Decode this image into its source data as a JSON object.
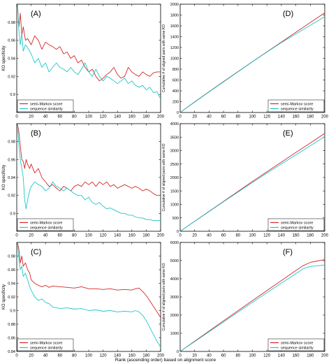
{
  "figure": {
    "xlabel": "Rank (ascending order) based on alignment score",
    "colors": {
      "semi_markov": "#d62728",
      "sequence": "#1ec7c9",
      "axis": "#000000",
      "grid": "#d8d8d8"
    }
  },
  "chart_data": [
    {
      "panel": "(A)",
      "type": "line",
      "ylabel": "KO specificity",
      "xlim": [
        0,
        200
      ],
      "ylim": [
        0.88,
        1.0
      ],
      "xticks": [
        0,
        20,
        40,
        60,
        80,
        100,
        120,
        140,
        160,
        180,
        200
      ],
      "yticks": [
        0.88,
        0.9,
        0.92,
        0.94,
        0.96,
        0.98,
        1.0
      ],
      "ytick_labels": [
        "",
        "0.9",
        "0.92",
        "0.94",
        "0.96",
        "0.98",
        ""
      ],
      "legend": "bottom-left",
      "series": [
        {
          "name": "semi-Markov score",
          "x": [
            1,
            3,
            5,
            7,
            9,
            12,
            15,
            20,
            25,
            30,
            35,
            40,
            45,
            50,
            55,
            60,
            65,
            70,
            75,
            80,
            85,
            90,
            95,
            100,
            105,
            110,
            115,
            120,
            125,
            130,
            135,
            140,
            145,
            150,
            155,
            160,
            165,
            170,
            175,
            180,
            185,
            190,
            195,
            200
          ],
          "y": [
            1.0,
            0.975,
            0.99,
            0.965,
            0.975,
            0.96,
            0.962,
            0.955,
            0.965,
            0.96,
            0.95,
            0.958,
            0.955,
            0.953,
            0.95,
            0.953,
            0.945,
            0.947,
            0.94,
            0.943,
            0.935,
            0.938,
            0.93,
            0.925,
            0.928,
            0.92,
            0.915,
            0.918,
            0.922,
            0.925,
            0.93,
            0.922,
            0.918,
            0.92,
            0.93,
            0.925,
            0.922,
            0.92,
            0.925,
            0.922,
            0.92,
            0.924,
            0.925,
            0.925
          ]
        },
        {
          "name": "sequence similarity",
          "x": [
            1,
            3,
            5,
            7,
            9,
            12,
            15,
            20,
            25,
            30,
            35,
            40,
            45,
            50,
            55,
            60,
            65,
            70,
            75,
            80,
            85,
            90,
            95,
            100,
            105,
            110,
            115,
            120,
            125,
            130,
            135,
            140,
            145,
            150,
            155,
            160,
            165,
            170,
            175,
            180,
            185,
            190,
            195,
            200
          ],
          "y": [
            1.0,
            0.97,
            0.955,
            0.968,
            0.948,
            0.955,
            0.952,
            0.945,
            0.935,
            0.94,
            0.93,
            0.935,
            0.925,
            0.93,
            0.935,
            0.93,
            0.928,
            0.925,
            0.93,
            0.925,
            0.922,
            0.928,
            0.935,
            0.925,
            0.92,
            0.928,
            0.92,
            0.915,
            0.92,
            0.918,
            0.915,
            0.912,
            0.915,
            0.918,
            0.912,
            0.915,
            0.91,
            0.908,
            0.91,
            0.905,
            0.908,
            0.902,
            0.903,
            0.895
          ]
        }
      ]
    },
    {
      "panel": "(B)",
      "type": "line",
      "ylabel": "KO specificity",
      "xlim": [
        0,
        200
      ],
      "ylim": [
        0.88,
        1.0
      ],
      "xticks": [
        0,
        20,
        40,
        60,
        80,
        100,
        120,
        140,
        160,
        180,
        200
      ],
      "yticks": [
        0.88,
        0.9,
        0.92,
        0.94,
        0.96,
        0.98,
        1.0
      ],
      "ytick_labels": [
        "",
        "0.9",
        "0.92",
        "0.94",
        "0.96",
        "0.98",
        ""
      ],
      "legend": "bottom-left",
      "series": [
        {
          "name": "semi-Markov score",
          "x": [
            1,
            3,
            5,
            7,
            9,
            11,
            13,
            15,
            18,
            20,
            25,
            30,
            35,
            40,
            45,
            50,
            55,
            60,
            65,
            70,
            75,
            80,
            85,
            90,
            95,
            100,
            105,
            110,
            115,
            120,
            125,
            130,
            135,
            140,
            145,
            150,
            155,
            160,
            165,
            170,
            175,
            180,
            185,
            190,
            195,
            200
          ],
          "y": [
            1.0,
            0.99,
            0.975,
            0.96,
            0.958,
            0.95,
            0.96,
            0.955,
            0.95,
            0.955,
            0.945,
            0.95,
            0.94,
            0.935,
            0.93,
            0.932,
            0.928,
            0.925,
            0.93,
            0.928,
            0.925,
            0.93,
            0.932,
            0.93,
            0.935,
            0.932,
            0.935,
            0.93,
            0.935,
            0.932,
            0.935,
            0.93,
            0.932,
            0.928,
            0.93,
            0.932,
            0.93,
            0.928,
            0.93,
            0.928,
            0.925,
            0.927,
            0.925,
            0.922,
            0.92,
            0.92
          ]
        },
        {
          "name": "sequence similarity",
          "x": [
            1,
            3,
            5,
            7,
            9,
            11,
            13,
            15,
            18,
            20,
            25,
            30,
            35,
            40,
            45,
            50,
            55,
            60,
            65,
            70,
            75,
            80,
            85,
            90,
            95,
            100,
            105,
            110,
            115,
            120,
            125,
            130,
            135,
            140,
            145,
            150,
            155,
            160,
            165,
            170,
            175,
            180,
            185,
            190,
            195,
            200
          ],
          "y": [
            1.0,
            0.975,
            0.96,
            0.95,
            0.94,
            0.915,
            0.905,
            0.915,
            0.925,
            0.93,
            0.935,
            0.932,
            0.93,
            0.925,
            0.928,
            0.935,
            0.93,
            0.928,
            0.925,
            0.928,
            0.925,
            0.922,
            0.92,
            0.92,
            0.915,
            0.918,
            0.912,
            0.91,
            0.912,
            0.908,
            0.905,
            0.906,
            0.904,
            0.902,
            0.9,
            0.9,
            0.898,
            0.898,
            0.896,
            0.895,
            0.895,
            0.893,
            0.893,
            0.892,
            0.892,
            0.892
          ]
        }
      ]
    },
    {
      "panel": "(C)",
      "type": "line",
      "ylabel": "KO specificity",
      "xlim": [
        0,
        200
      ],
      "ylim": [
        0.84,
        1.0
      ],
      "xticks": [
        0,
        20,
        40,
        60,
        80,
        100,
        120,
        140,
        160,
        180,
        200
      ],
      "yticks": [
        0.84,
        0.86,
        0.88,
        0.9,
        0.92,
        0.94,
        0.96,
        0.98,
        1.0
      ],
      "ytick_labels": [
        "0.84",
        "0.86",
        "0.88",
        "0.9",
        "0.92",
        "0.94",
        "0.96",
        "0.98",
        ""
      ],
      "legend": "bottom-left",
      "series": [
        {
          "name": "semi-Markov score",
          "x": [
            1,
            3,
            5,
            7,
            9,
            12,
            15,
            18,
            20,
            25,
            30,
            35,
            40,
            45,
            50,
            60,
            70,
            80,
            90,
            100,
            110,
            120,
            130,
            140,
            150,
            160,
            165,
            170,
            175,
            180,
            185,
            190,
            195,
            200
          ],
          "y": [
            1.0,
            0.99,
            0.97,
            0.98,
            0.965,
            0.97,
            0.96,
            0.955,
            0.945,
            0.94,
            0.937,
            0.935,
            0.937,
            0.934,
            0.936,
            0.935,
            0.934,
            0.933,
            0.935,
            0.932,
            0.932,
            0.931,
            0.932,
            0.93,
            0.931,
            0.93,
            0.932,
            0.933,
            0.928,
            0.922,
            0.914,
            0.906,
            0.898,
            0.89
          ]
        },
        {
          "name": "sequence similarity",
          "x": [
            1,
            3,
            5,
            7,
            9,
            12,
            15,
            18,
            20,
            25,
            30,
            35,
            40,
            45,
            50,
            60,
            70,
            80,
            90,
            100,
            110,
            120,
            130,
            140,
            150,
            160,
            165,
            170,
            175,
            180,
            185,
            190,
            195,
            200
          ],
          "y": [
            1.0,
            0.975,
            0.96,
            0.965,
            0.95,
            0.955,
            0.945,
            0.935,
            0.93,
            0.92,
            0.915,
            0.917,
            0.912,
            0.91,
            0.905,
            0.903,
            0.904,
            0.902,
            0.903,
            0.9,
            0.901,
            0.899,
            0.9,
            0.898,
            0.899,
            0.898,
            0.9,
            0.898,
            0.893,
            0.885,
            0.875,
            0.865,
            0.855,
            0.846
          ]
        }
      ]
    },
    {
      "panel": "(D)",
      "type": "line",
      "ylabel": "Cumulative # of aligned pairs with same KO",
      "xlim": [
        0,
        200
      ],
      "ylim": [
        0,
        2000
      ],
      "xticks": [
        0,
        20,
        40,
        60,
        80,
        100,
        120,
        140,
        160,
        180,
        200
      ],
      "yticks": [
        0,
        200,
        400,
        600,
        800,
        1000,
        1200,
        1400,
        1600,
        1800,
        2000
      ],
      "ytick_labels": [
        "0",
        "200",
        "400",
        "600",
        "800",
        "1000",
        "1200",
        "1400",
        "1600",
        "1800",
        "2000"
      ],
      "legend": "bottom-right",
      "series": [
        {
          "name": "semi-Markov score",
          "x": [
            0,
            20,
            40,
            60,
            80,
            100,
            120,
            140,
            160,
            180,
            200
          ],
          "y": [
            0,
            195,
            385,
            570,
            755,
            940,
            1120,
            1300,
            1480,
            1660,
            1840
          ]
        },
        {
          "name": "sequence similarity",
          "x": [
            0,
            20,
            40,
            60,
            80,
            100,
            120,
            140,
            160,
            180,
            200
          ],
          "y": [
            0,
            190,
            380,
            565,
            750,
            935,
            1115,
            1290,
            1450,
            1610,
            1770
          ]
        }
      ]
    },
    {
      "panel": "(E)",
      "type": "line",
      "ylabel": "Cumulative # of aligned pairs with same KO",
      "xlim": [
        0,
        200
      ],
      "ylim": [
        0,
        4000
      ],
      "xticks": [
        0,
        20,
        40,
        60,
        80,
        100,
        120,
        140,
        160,
        180,
        200
      ],
      "yticks": [
        0,
        500,
        1000,
        1500,
        2000,
        2500,
        3000,
        3500,
        4000
      ],
      "ytick_labels": [
        "0",
        "500",
        "1000",
        "1500",
        "2000",
        "2500",
        "3000",
        "3500",
        "4000"
      ],
      "legend": "bottom-right",
      "series": [
        {
          "name": "semi-Markov score",
          "x": [
            0,
            20,
            40,
            60,
            80,
            100,
            120,
            140,
            160,
            180,
            200
          ],
          "y": [
            0,
            370,
            740,
            1110,
            1480,
            1850,
            2210,
            2570,
            2930,
            3280,
            3640
          ]
        },
        {
          "name": "sequence similarity",
          "x": [
            0,
            20,
            40,
            60,
            80,
            100,
            120,
            140,
            160,
            180,
            200
          ],
          "y": [
            0,
            365,
            730,
            1095,
            1455,
            1810,
            2160,
            2500,
            2840,
            3180,
            3520
          ]
        }
      ]
    },
    {
      "panel": "(F)",
      "type": "line",
      "ylabel": "Cumulative # of aligned pairs with same KO",
      "xlim": [
        0,
        200
      ],
      "ylim": [
        0,
        6000
      ],
      "xticks": [
        0,
        20,
        40,
        60,
        80,
        100,
        120,
        140,
        160,
        180,
        200
      ],
      "yticks": [
        0,
        1000,
        2000,
        3000,
        4000,
        5000,
        6000
      ],
      "ytick_labels": [
        "0",
        "1000",
        "2000",
        "3000",
        "4000",
        "5000",
        "6000"
      ],
      "legend": "bottom-right",
      "series": [
        {
          "name": "semi-Markov score",
          "x": [
            0,
            20,
            40,
            60,
            80,
            100,
            120,
            140,
            160,
            170,
            180,
            190,
            200
          ],
          "y": [
            0,
            560,
            1120,
            1680,
            2240,
            2800,
            3350,
            3900,
            4450,
            4720,
            4900,
            4980,
            5050
          ]
        },
        {
          "name": "sequence similarity",
          "x": [
            0,
            20,
            40,
            60,
            80,
            100,
            120,
            140,
            160,
            170,
            180,
            190,
            200
          ],
          "y": [
            0,
            540,
            1080,
            1620,
            2160,
            2700,
            3230,
            3760,
            4280,
            4550,
            4680,
            4720,
            4750
          ]
        }
      ]
    }
  ]
}
